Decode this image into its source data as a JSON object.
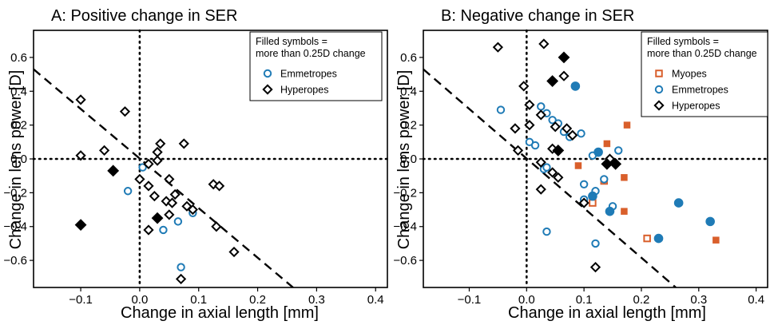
{
  "colors": {
    "emmetropes": "#1f7bb6",
    "myopes": "#d95f2b",
    "hyperopes": "#000000"
  },
  "chart_data": [
    {
      "type": "scatter",
      "title": "A: Positive change in SER",
      "xlabel": "Change in axial length [mm]",
      "ylabel": "Change in lens power [D]",
      "xlim": [
        -0.18,
        0.42
      ],
      "ylim": [
        -0.76,
        0.76
      ],
      "xticks": [
        -0.1,
        0.0,
        0.1,
        0.2,
        0.3,
        0.4
      ],
      "xtick_labels": [
        "−0.1",
        "0.0",
        "0.1",
        "0.2",
        "0.3",
        "0.4"
      ],
      "yticks": [
        -0.6,
        -0.4,
        -0.2,
        0.0,
        0.2,
        0.4,
        0.6
      ],
      "ytick_labels": [
        "−0.6",
        "−0.4",
        "−0.2",
        "0.0",
        "0.2",
        "0.4",
        "0.6"
      ],
      "grid": false,
      "legend_title": "Filled symbols =\nmore than 0.25D change",
      "legend_position": "top-right",
      "reference_lines": {
        "x": 0,
        "y": 0
      },
      "dashed_line": {
        "x": [
          -0.18,
          0.26
        ],
        "y": [
          0.53,
          -0.76
        ]
      },
      "series": [
        {
          "name": "Emmetropes",
          "marker": "circle",
          "color": "#1f7bb6",
          "points": [
            [
              0.005,
              -0.05,
              0
            ],
            [
              -0.02,
              -0.19,
              0
            ],
            [
              0.04,
              -0.42,
              0
            ],
            [
              0.065,
              -0.37,
              0
            ],
            [
              0.09,
              -0.32,
              0
            ],
            [
              0.07,
              -0.64,
              0
            ]
          ]
        },
        {
          "name": "Hyperopes",
          "marker": "diamond",
          "color": "#000000",
          "points": [
            [
              -0.1,
              0.35,
              0
            ],
            [
              -0.1,
              0.02,
              0
            ],
            [
              -0.025,
              0.28,
              0
            ],
            [
              -0.06,
              0.05,
              0
            ],
            [
              0.035,
              0.09,
              0
            ],
            [
              0.075,
              0.09,
              0
            ],
            [
              0.03,
              0.04,
              0
            ],
            [
              0.03,
              -0.01,
              0
            ],
            [
              0.0,
              -0.12,
              0
            ],
            [
              0.015,
              -0.03,
              0
            ],
            [
              0.05,
              -0.12,
              0
            ],
            [
              0.015,
              -0.16,
              0
            ],
            [
              0.025,
              -0.22,
              0
            ],
            [
              0.06,
              -0.21,
              0
            ],
            [
              0.045,
              -0.25,
              0
            ],
            [
              0.055,
              -0.26,
              0
            ],
            [
              0.08,
              -0.28,
              0
            ],
            [
              0.09,
              -0.3,
              0
            ],
            [
              0.05,
              -0.33,
              0
            ],
            [
              0.125,
              -0.15,
              0
            ],
            [
              0.135,
              -0.16,
              0
            ],
            [
              0.13,
              -0.4,
              0
            ],
            [
              0.16,
              -0.55,
              0
            ],
            [
              0.015,
              -0.42,
              0
            ],
            [
              0.07,
              -0.71,
              0
            ],
            [
              -0.045,
              -0.07,
              1
            ],
            [
              -0.1,
              -0.39,
              1
            ],
            [
              0.03,
              -0.35,
              1
            ]
          ]
        }
      ]
    },
    {
      "type": "scatter",
      "title": "B: Negative change in SER",
      "xlabel": "Change in axial length [mm]",
      "ylabel": "Change in lens power [D]",
      "xlim": [
        -0.18,
        0.42
      ],
      "ylim": [
        -0.76,
        0.76
      ],
      "xticks": [
        -0.1,
        0.0,
        0.1,
        0.2,
        0.3,
        0.4
      ],
      "xtick_labels": [
        "−0.1",
        "0.0",
        "0.1",
        "0.2",
        "0.3",
        "0.4"
      ],
      "yticks": [
        -0.6,
        -0.4,
        -0.2,
        0.0,
        0.2,
        0.4,
        0.6
      ],
      "ytick_labels": [
        "−0.6",
        "−0.4",
        "−0.2",
        "0.0",
        "0.2",
        "0.4",
        "0.6"
      ],
      "grid": false,
      "legend_title": "Filled symbols =\nmore than 0.25D change",
      "legend_position": "top-right",
      "reference_lines": {
        "x": 0,
        "y": 0
      },
      "dashed_line": {
        "x": [
          -0.18,
          0.26
        ],
        "y": [
          0.53,
          -0.76
        ]
      },
      "series": [
        {
          "name": "Myopes",
          "marker": "square",
          "color": "#d95f2b",
          "points": [
            [
              0.115,
              -0.26,
              0
            ],
            [
              0.135,
              -0.13,
              0
            ],
            [
              0.21,
              -0.47,
              0
            ],
            [
              0.09,
              -0.04,
              1
            ],
            [
              0.14,
              0.09,
              1
            ],
            [
              0.175,
              0.2,
              1
            ],
            [
              0.17,
              -0.11,
              1
            ],
            [
              0.17,
              -0.31,
              1
            ],
            [
              0.33,
              -0.48,
              1
            ]
          ]
        },
        {
          "name": "Emmetropes",
          "marker": "circle",
          "color": "#1f7bb6",
          "points": [
            [
              -0.045,
              0.29,
              0
            ],
            [
              0.025,
              0.31,
              0
            ],
            [
              0.035,
              0.27,
              0
            ],
            [
              0.045,
              0.23,
              0
            ],
            [
              0.055,
              0.21,
              0
            ],
            [
              0.065,
              0.16,
              0
            ],
            [
              0.075,
              0.13,
              0
            ],
            [
              0.095,
              0.15,
              0
            ],
            [
              0.005,
              0.1,
              0
            ],
            [
              0.015,
              0.08,
              0
            ],
            [
              0.03,
              -0.06,
              0
            ],
            [
              0.035,
              -0.05,
              0
            ],
            [
              0.1,
              -0.15,
              0
            ],
            [
              0.115,
              0.02,
              0
            ],
            [
              0.16,
              0.05,
              0
            ],
            [
              0.135,
              -0.12,
              0
            ],
            [
              0.1,
              -0.24,
              0
            ],
            [
              0.12,
              -0.19,
              0
            ],
            [
              0.15,
              -0.28,
              0
            ],
            [
              0.12,
              -0.5,
              0
            ],
            [
              0.035,
              -0.43,
              0
            ],
            [
              0.085,
              0.43,
              1
            ],
            [
              0.125,
              0.04,
              1
            ],
            [
              0.115,
              -0.22,
              1
            ],
            [
              0.145,
              -0.31,
              1
            ],
            [
              0.23,
              -0.47,
              1
            ],
            [
              0.265,
              -0.26,
              1
            ],
            [
              0.32,
              -0.37,
              1
            ]
          ]
        },
        {
          "name": "Hyperopes",
          "marker": "diamond",
          "color": "#000000",
          "points": [
            [
              -0.05,
              0.66,
              0
            ],
            [
              0.03,
              0.68,
              0
            ],
            [
              0.065,
              0.49,
              0
            ],
            [
              -0.005,
              0.43,
              0
            ],
            [
              0.005,
              0.32,
              0
            ],
            [
              0.025,
              0.26,
              0
            ],
            [
              0.05,
              0.19,
              0
            ],
            [
              0.07,
              0.18,
              0
            ],
            [
              0.08,
              0.14,
              0
            ],
            [
              -0.02,
              0.18,
              0
            ],
            [
              0.005,
              0.2,
              0
            ],
            [
              -0.015,
              0.05,
              0
            ],
            [
              0.045,
              0.06,
              0
            ],
            [
              0.025,
              -0.02,
              0
            ],
            [
              0.045,
              -0.08,
              0
            ],
            [
              0.055,
              -0.11,
              0
            ],
            [
              0.025,
              -0.18,
              0
            ],
            [
              0.1,
              -0.26,
              0
            ],
            [
              0.145,
              0.0,
              0
            ],
            [
              0.12,
              -0.64,
              0
            ],
            [
              0.065,
              0.6,
              1
            ],
            [
              0.045,
              0.46,
              1
            ],
            [
              0.055,
              0.05,
              1
            ],
            [
              0.14,
              -0.03,
              1
            ],
            [
              0.155,
              -0.03,
              1
            ]
          ]
        }
      ]
    }
  ]
}
